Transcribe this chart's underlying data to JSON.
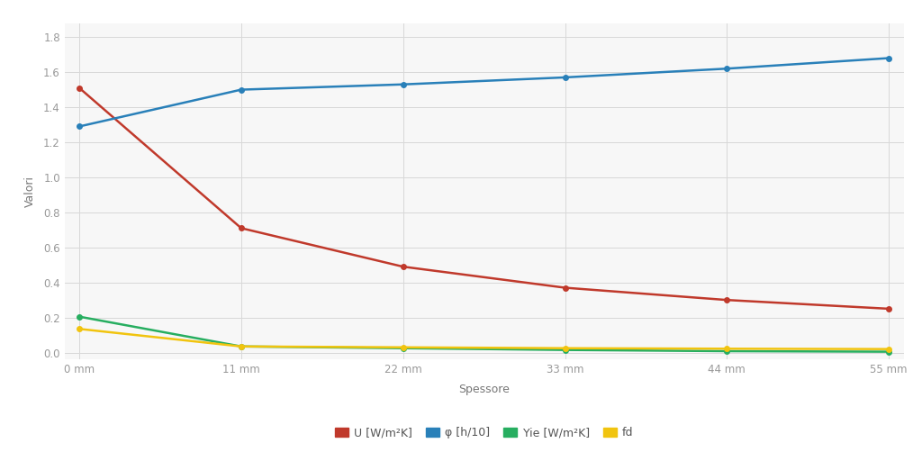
{
  "x_values": [
    0,
    11,
    22,
    33,
    44,
    55
  ],
  "x_labels": [
    "0 mm",
    "11 mm",
    "22 mm",
    "33 mm",
    "44 mm",
    "55 mm"
  ],
  "U": [
    1.51,
    0.71,
    0.49,
    0.37,
    0.3,
    0.25
  ],
  "phi": [
    1.29,
    1.5,
    1.53,
    1.57,
    1.62,
    1.68
  ],
  "Yie": [
    0.205,
    0.035,
    0.025,
    0.015,
    0.008,
    0.005
  ],
  "fd": [
    0.135,
    0.035,
    0.03,
    0.025,
    0.022,
    0.02
  ],
  "U_color": "#c0392b",
  "phi_color": "#2980b9",
  "Yie_color": "#27ae60",
  "fd_color": "#f1c40f",
  "ylabel": "Valori",
  "xlabel": "Spessore",
  "ylim_min": -0.04,
  "ylim_max": 1.88,
  "yticks": [
    0.0,
    0.2,
    0.4,
    0.6,
    0.8,
    1.0,
    1.2,
    1.4,
    1.6,
    1.8
  ],
  "legend_labels": [
    "U [W/m²K]",
    "φ [h/10]",
    "Yie [W/m²K]",
    "fd"
  ],
  "bg_color": "#ffffff",
  "plot_bg_color": "#f7f7f7",
  "grid_color": "#d8d8d8",
  "marker": "o",
  "marker_size": 4,
  "line_width": 1.8
}
